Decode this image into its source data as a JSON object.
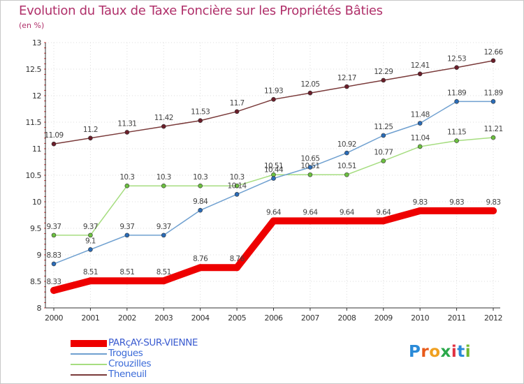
{
  "title": "Evolution du Taux de Taxe Foncière sur les Propriétés Bâties",
  "unit": "(en %)",
  "logo_text": "Proxiti",
  "chart_data": {
    "type": "line",
    "title": "Evolution du Taux de Taxe Foncière sur les Propriétés Bâties",
    "ylabel": "(en %)",
    "xlabel": "",
    "x": [
      "2000",
      "2001",
      "2002",
      "2003",
      "2004",
      "2005",
      "2006",
      "2007",
      "2008",
      "2009",
      "2010",
      "2011",
      "2012"
    ],
    "ylim": [
      8,
      13
    ],
    "yticks": [
      8,
      8.5,
      9,
      9.5,
      10,
      10.5,
      11,
      11.5,
      12,
      12.5,
      13
    ],
    "ytick_labels": [
      "8",
      "8.5",
      "9",
      "9.5",
      "10",
      "10.5",
      "11",
      "11.5",
      "12",
      "12.5",
      "13"
    ],
    "grid": true,
    "legend_position": "bottom-left",
    "series": [
      {
        "name": "PARçAY-SUR-VIENNE",
        "color": "#ee0000",
        "marker": "#ee0000",
        "values": [
          8.33,
          8.51,
          8.51,
          8.51,
          8.76,
          8.76,
          9.64,
          9.64,
          9.64,
          9.64,
          9.83,
          9.83,
          9.83
        ],
        "labels": [
          "8.33",
          "8.51",
          "8.51",
          "8.51",
          "8.76",
          "8.76",
          "9.64",
          "9.64",
          "9.64",
          "9.64",
          "9.83",
          "9.83",
          "9.83"
        ]
      },
      {
        "name": "Trogues",
        "color": "#6fa0d0",
        "marker": "#2a6cb8",
        "values": [
          8.83,
          9.1,
          9.37,
          9.37,
          9.84,
          10.14,
          10.44,
          10.65,
          10.92,
          11.25,
          11.48,
          11.89,
          11.89
        ],
        "labels": [
          "8.83",
          "9.1",
          "9.37",
          "9.37",
          "9.84",
          "10.14",
          "10.44",
          "10.65",
          "10.92",
          "11.25",
          "11.48",
          "11.89",
          "11.89"
        ]
      },
      {
        "name": "Crouzilles",
        "color": "#a6dd80",
        "marker": "#6cc040",
        "values": [
          9.37,
          9.37,
          10.3,
          10.3,
          10.3,
          10.3,
          10.51,
          10.51,
          10.51,
          10.77,
          11.04,
          11.15,
          11.21
        ],
        "labels": [
          "9.37",
          "9.37",
          "10.3",
          "10.3",
          "10.3",
          "10.3",
          "10.51",
          "10.51",
          "10.51",
          "10.77",
          "11.04",
          "11.15",
          "11.21"
        ]
      },
      {
        "name": "Theneuil",
        "color": "#7a3a3a",
        "marker": "#6b1e2a",
        "values": [
          11.09,
          11.2,
          11.31,
          11.42,
          11.53,
          11.7,
          11.93,
          12.05,
          12.17,
          12.29,
          12.41,
          12.53,
          12.66
        ],
        "labels": [
          "11.09",
          "11.2",
          "11.31",
          "11.42",
          "11.53",
          "11.7",
          "11.93",
          "12.05",
          "12.17",
          "12.29",
          "12.41",
          "12.53",
          "12.66"
        ]
      }
    ]
  }
}
